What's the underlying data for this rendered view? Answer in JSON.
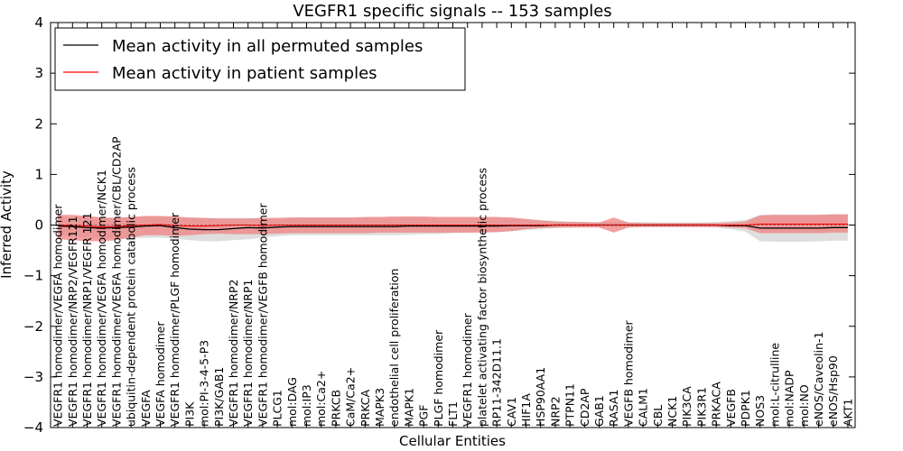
{
  "chart_data": {
    "type": "line",
    "title": "VEGFR1 specific signals -- 153 samples",
    "xlabel": "Cellular Entities",
    "ylabel": "Inferred Activity",
    "ylim": [
      -4,
      4
    ],
    "yticks": [
      "4",
      "3",
      "2",
      "1",
      "0",
      "−1",
      "−2",
      "−3",
      "−4"
    ],
    "ytick_values": [
      4,
      3,
      2,
      1,
      0,
      -1,
      -2,
      -3,
      -4
    ],
    "grid": false,
    "legend_position": "top-left",
    "colors": {
      "permuted_line": "#000000",
      "permuted_band": "#c8c8c8",
      "patient_line": "#ff0000",
      "patient_band": "#f08080"
    },
    "categories": [
      "VEGFR1 homodimer/VEGFA homodimer",
      "VEGFR1 homodimer/NRP2/VEGFR121",
      "VEGFR1 homodimer/NRP1/VEGFR 121",
      "VEGFR1 homodimer/VEGFA homodimer/NCK1",
      "VEGFR1 homodimer/VEGFA homodimer/CBL/CD2AP",
      "ubiquitin-dependent protein catabolic process",
      "VEGFA",
      "VEGFA homodimer",
      "VEGFR1 homodimer/PLGF homodimer",
      "PI3K",
      "mol:PI-3-4-5-P3",
      "PI3K/GAB1",
      "VEGFR1 homodimer/NRP2",
      "VEGFR1 homodimer/NRP1",
      "VEGFR1 homodimer/VEGFB homodimer",
      "PLCG1",
      "mol:DAG",
      "mol:IP3",
      "mol:Ca2+",
      "PRKCB",
      "CaM/Ca2+",
      "PRKCA",
      "MAPK3",
      "endothelial cell proliferation",
      "MAPK1",
      "PGF",
      "PLGF homodimer",
      "FLT1",
      "VEGFR1 homodimer",
      "platelet activating factor biosynthetic process",
      "RP11-342D11.1",
      "CAV1",
      "HIF1A",
      "HSP90AA1",
      "NRP2",
      "PTPN11",
      "CD2AP",
      "GAB1",
      "RASA1",
      "VEGFB homodimer",
      "CALM1",
      "CBL",
      "NCK1",
      "PIK3CA",
      "PIK3R1",
      "PRKACA",
      "VEGFB",
      "PDPK1",
      "NOS3",
      "mol:L-citrulline",
      "mol:NADP",
      "mol:NO",
      "eNOS/Caveolin-1",
      "eNOS/Hsp90",
      "AKT1"
    ],
    "series": [
      {
        "name": "Mean activity in all permuted samples",
        "role": "permuted",
        "values": [
          -0.02,
          -0.03,
          -0.05,
          -0.06,
          -0.05,
          -0.04,
          -0.02,
          -0.01,
          -0.05,
          -0.08,
          -0.09,
          -0.09,
          -0.07,
          -0.05,
          -0.06,
          -0.04,
          -0.03,
          -0.03,
          -0.03,
          -0.03,
          -0.03,
          -0.03,
          -0.03,
          -0.03,
          -0.02,
          -0.02,
          -0.02,
          -0.02,
          -0.02,
          -0.02,
          -0.02,
          -0.01,
          -0.01,
          -0.01,
          0.0,
          0.0,
          0.0,
          0.0,
          0.0,
          0.0,
          0.0,
          0.0,
          0.0,
          0.0,
          0.0,
          0.0,
          -0.01,
          -0.01,
          -0.06,
          -0.06,
          -0.06,
          -0.06,
          -0.06,
          -0.05,
          -0.05
        ],
        "lower": [
          -0.2,
          -0.22,
          -0.25,
          -0.27,
          -0.27,
          -0.27,
          -0.25,
          -0.25,
          -0.27,
          -0.3,
          -0.32,
          -0.32,
          -0.3,
          -0.28,
          -0.25,
          -0.22,
          -0.2,
          -0.2,
          -0.2,
          -0.2,
          -0.2,
          -0.2,
          -0.2,
          -0.2,
          -0.19,
          -0.18,
          -0.18,
          -0.16,
          -0.15,
          -0.14,
          -0.14,
          -0.12,
          -0.1,
          -0.08,
          -0.06,
          -0.05,
          -0.04,
          -0.04,
          -0.04,
          -0.04,
          -0.04,
          -0.04,
          -0.04,
          -0.04,
          -0.04,
          -0.05,
          -0.08,
          -0.13,
          -0.32,
          -0.33,
          -0.33,
          -0.33,
          -0.32,
          -0.31,
          -0.31
        ],
        "upper": [
          0.16,
          0.16,
          0.16,
          0.15,
          0.15,
          0.16,
          0.17,
          0.17,
          0.16,
          0.15,
          0.14,
          0.14,
          0.14,
          0.14,
          0.14,
          0.14,
          0.15,
          0.15,
          0.15,
          0.15,
          0.15,
          0.15,
          0.15,
          0.15,
          0.15,
          0.15,
          0.15,
          0.15,
          0.15,
          0.15,
          0.15,
          0.14,
          0.12,
          0.1,
          0.08,
          0.07,
          0.06,
          0.06,
          0.06,
          0.06,
          0.06,
          0.05,
          0.05,
          0.05,
          0.05,
          0.06,
          0.08,
          0.1,
          0.2,
          0.21,
          0.21,
          0.21,
          0.21,
          0.22,
          0.22
        ]
      },
      {
        "name": "Mean activity in patient samples",
        "role": "patient",
        "values": [
          0.0,
          -0.01,
          -0.02,
          -0.04,
          -0.03,
          -0.01,
          0.0,
          0.01,
          -0.01,
          -0.02,
          -0.02,
          -0.01,
          0.0,
          0.0,
          -0.01,
          0.0,
          0.0,
          0.0,
          0.0,
          0.0,
          0.0,
          0.0,
          0.0,
          0.0,
          0.0,
          0.0,
          0.0,
          0.0,
          0.0,
          0.0,
          0.0,
          0.0,
          0.0,
          0.0,
          0.0,
          0.0,
          0.0,
          0.0,
          0.0,
          0.0,
          0.0,
          0.0,
          0.0,
          0.0,
          0.0,
          0.0,
          0.0,
          0.0,
          0.02,
          0.02,
          0.02,
          0.02,
          0.02,
          0.02,
          0.02
        ],
        "lower": [
          -0.28,
          -0.3,
          -0.32,
          -0.32,
          -0.3,
          -0.24,
          -0.2,
          -0.2,
          -0.22,
          -0.2,
          -0.18,
          -0.17,
          -0.18,
          -0.18,
          -0.18,
          -0.17,
          -0.16,
          -0.16,
          -0.16,
          -0.16,
          -0.16,
          -0.16,
          -0.15,
          -0.15,
          -0.15,
          -0.15,
          -0.15,
          -0.15,
          -0.15,
          -0.15,
          -0.14,
          -0.12,
          -0.08,
          -0.06,
          -0.05,
          -0.05,
          -0.05,
          -0.05,
          -0.15,
          -0.05,
          -0.04,
          -0.04,
          -0.04,
          -0.04,
          -0.04,
          -0.04,
          -0.05,
          -0.06,
          -0.16,
          -0.16,
          -0.16,
          -0.16,
          -0.16,
          -0.15,
          -0.15
        ],
        "upper": [
          0.2,
          0.2,
          0.18,
          0.15,
          0.14,
          0.16,
          0.18,
          0.18,
          0.17,
          0.15,
          0.14,
          0.13,
          0.13,
          0.13,
          0.14,
          0.14,
          0.15,
          0.15,
          0.15,
          0.15,
          0.15,
          0.16,
          0.16,
          0.17,
          0.17,
          0.17,
          0.16,
          0.16,
          0.16,
          0.16,
          0.16,
          0.15,
          0.12,
          0.09,
          0.07,
          0.06,
          0.06,
          0.05,
          0.15,
          0.05,
          0.04,
          0.04,
          0.04,
          0.04,
          0.04,
          0.04,
          0.05,
          0.07,
          0.19,
          0.2,
          0.2,
          0.2,
          0.2,
          0.21,
          0.21
        ]
      }
    ]
  }
}
